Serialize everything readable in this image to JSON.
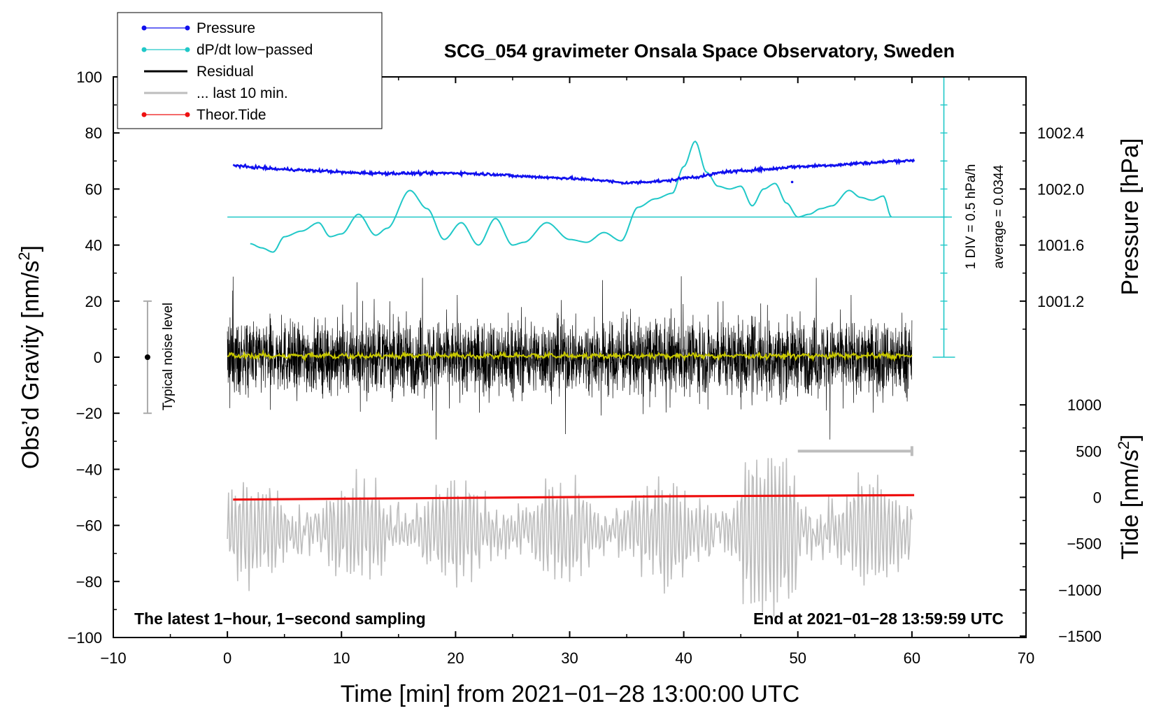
{
  "chart_data": {
    "type": "line",
    "title": "SCG_054 gravimeter Onsala Space Observatory, Sweden",
    "xlabel": "Time [min] from 2021−01−28 13:00:00 UTC",
    "ylabel_left": "Obs’d Gravity [nm/s",
    "ylabel_left_sup": "2",
    "ylabel_left_close": "]",
    "ylabel_right_pressure": "Pressure [hPa]",
    "ylabel_right_tide": "Tide [nm/s",
    "ylabel_right_tide_sup": "2",
    "ylabel_right_tide_close": "]",
    "xlim": [
      -10,
      70
    ],
    "ylim": [
      -100,
      100
    ],
    "x_ticks": [
      -10,
      0,
      10,
      20,
      30,
      40,
      50,
      60,
      70
    ],
    "x_tick_labels": [
      "−10",
      "0",
      "10",
      "20",
      "30",
      "40",
      "50",
      "60",
      "70"
    ],
    "y_ticks": [
      -100,
      -80,
      -60,
      -40,
      -20,
      0,
      20,
      40,
      60,
      80,
      100
    ],
    "y_tick_labels": [
      "−100",
      "−80",
      "−60",
      "−40",
      "−20",
      "0",
      "20",
      "40",
      "60",
      "80",
      "100"
    ],
    "pressure_axis": {
      "range": [
        1001.2,
        1002.4
      ],
      "ticks": [
        1001.2,
        1001.6,
        1002.0,
        1002.4
      ],
      "tick_labels": [
        "1001.2",
        "1001.6",
        "1002.0",
        "1002.4"
      ]
    },
    "tide_axis": {
      "ticks": [
        -1500,
        -1000,
        -500,
        0,
        500,
        1000
      ],
      "tick_labels": [
        "−1500",
        "−1000",
        "−500",
        "0",
        "500",
        "1000"
      ]
    },
    "dpdt_scale_text": "1 DIV = 0.5 hPa/h",
    "dpdt_average_text": "average = 0.0344",
    "noise_label": "Typical noise level",
    "noise_range": [
      -20,
      20
    ],
    "footer_left": "The latest 1−hour, 1−second sampling",
    "footer_right": "End at 2021−01−28 13:59:59 UTC",
    "legend": [
      {
        "label": "Pressure",
        "color": "#1010ee",
        "marker": true
      },
      {
        "label": "dP/dt low−passed",
        "color": "#20c8c8",
        "marker": true
      },
      {
        "label": "Residual",
        "color": "#000000",
        "marker": false
      },
      {
        "label": "... last 10 min.",
        "color": "#bdbdbd",
        "marker": false
      },
      {
        "label": "Theor.Tide",
        "color": "#ee1010",
        "marker": true
      }
    ],
    "series": [
      {
        "name": "Pressure",
        "color": "#1010ee",
        "x": [
          0.5,
          2,
          5,
          8,
          11,
          14,
          17,
          20,
          23,
          26,
          29,
          32,
          35,
          38,
          41,
          44,
          47,
          50,
          53,
          56,
          59,
          60.2
        ],
        "y": [
          68.5,
          67.8,
          67.0,
          66.5,
          65.8,
          65.6,
          65.6,
          65.7,
          65.3,
          64.5,
          64.0,
          63.3,
          62.2,
          62.8,
          64.3,
          66.2,
          67.0,
          68.0,
          68.5,
          69.3,
          70.0,
          70.2
        ]
      },
      {
        "name": "dP/dt low−passed",
        "color": "#20c8c8",
        "x": [
          2,
          3,
          4,
          5,
          6.5,
          8,
          9,
          10,
          11.5,
          13,
          14,
          16,
          17.5,
          19,
          20.5,
          22,
          23.5,
          25,
          26,
          28,
          30,
          31.5,
          33,
          34.5,
          36,
          37.5,
          39,
          40,
          41,
          42,
          43,
          44,
          45,
          46,
          47,
          48,
          49,
          50,
          51,
          52,
          53,
          54.5,
          55.5,
          56.5,
          57.5,
          58.2
        ],
        "y": [
          40.5,
          39,
          37.5,
          43,
          45,
          48,
          43,
          44,
          51,
          43.5,
          46,
          59.5,
          53,
          42,
          48,
          40,
          49.5,
          40,
          41,
          48,
          42,
          41,
          44.5,
          41.5,
          53.5,
          56.5,
          58.5,
          68,
          77,
          66,
          61,
          60,
          61,
          54,
          60,
          62,
          55,
          50,
          51,
          53,
          54,
          59.5,
          57,
          56,
          57.5,
          50
        ]
      },
      {
        "name": "Residual",
        "color": "#000000",
        "x_range": [
          0,
          60
        ],
        "amplitude": [
          -35,
          35
        ]
      },
      {
        "name": "... last 10 min.",
        "color": "#bdbdbd",
        "x_range": [
          0,
          60
        ],
        "y_center": -62,
        "amplitude": [
          -102,
          -40
        ]
      },
      {
        "name": "Residual low−passed",
        "color": "#c8c800",
        "x_range": [
          0,
          60
        ],
        "y_center": 0.5
      },
      {
        "name": "Theor.Tide",
        "color": "#ee1010",
        "x": [
          0.5,
          10,
          20,
          30,
          40,
          50,
          60.2
        ],
        "y": [
          -50.8,
          -50.5,
          -50.2,
          -49.9,
          -49.6,
          -49.4,
          -49.2
        ]
      }
    ],
    "dpdt_reference_y": 50,
    "last10_bar": {
      "x": [
        50,
        60
      ],
      "y": -33.5
    },
    "colors": {
      "pressure": "#1010ee",
      "dpdt": "#20c8c8",
      "residual": "#000000",
      "last10": "#bdbdbd",
      "residual_lowpass": "#c8c800",
      "tide": "#ee1010"
    }
  }
}
